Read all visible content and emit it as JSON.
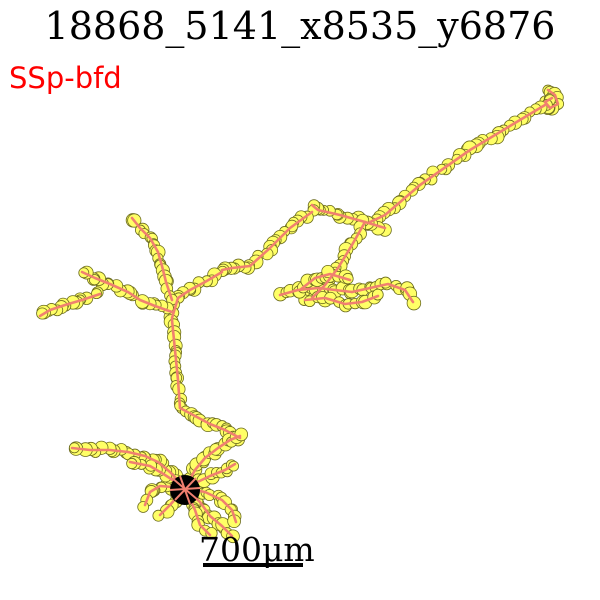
{
  "title": "18868_5141_x8535_y6876",
  "region": {
    "label": "SSp-bfd",
    "color": "#ff0000"
  },
  "scale_bar": {
    "label": "700μm"
  },
  "colors": {
    "node_fill": "#ffff66",
    "node_edge": "#6b6b1f",
    "branch": "#f08070",
    "soma": "#000000"
  }
}
